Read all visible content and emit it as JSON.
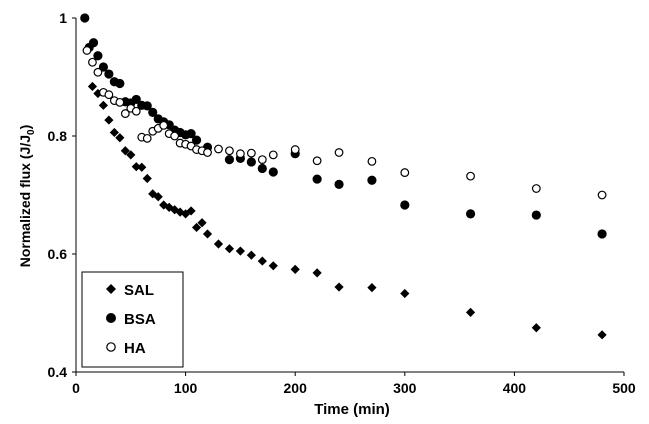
{
  "chart_data": {
    "type": "scatter",
    "xlabel": "Time (min)",
    "ylabel": "Normalized flux (J/J",
    "ylabel_sub": "0",
    "ylabel_close": ")",
    "xlim": [
      0,
      500
    ],
    "ylim": [
      0.4,
      1.0
    ],
    "x_ticks": [
      0,
      100,
      200,
      300,
      400,
      500
    ],
    "y_ticks": [
      0.4,
      0.6,
      0.8,
      1.0
    ],
    "x_tick_labels": [
      "0",
      "100",
      "200",
      "300",
      "400",
      "500"
    ],
    "y_tick_labels": [
      "0.4",
      "0.6",
      "0.8",
      "1"
    ],
    "grid": false,
    "legend_position": "bottom-left",
    "series": [
      {
        "name": "SAL",
        "marker": "diamond",
        "color": "#000000",
        "points": [
          [
            15,
            0.884
          ],
          [
            20,
            0.872
          ],
          [
            25,
            0.852
          ],
          [
            30,
            0.827
          ],
          [
            35,
            0.806
          ],
          [
            40,
            0.797
          ],
          [
            45,
            0.775
          ],
          [
            50,
            0.768
          ],
          [
            55,
            0.748
          ],
          [
            60,
            0.747
          ],
          [
            65,
            0.728
          ],
          [
            70,
            0.702
          ],
          [
            75,
            0.697
          ],
          [
            80,
            0.683
          ],
          [
            85,
            0.679
          ],
          [
            90,
            0.675
          ],
          [
            95,
            0.671
          ],
          [
            100,
            0.668
          ],
          [
            105,
            0.673
          ],
          [
            110,
            0.645
          ],
          [
            115,
            0.653
          ],
          [
            120,
            0.634
          ],
          [
            130,
            0.617
          ],
          [
            140,
            0.609
          ],
          [
            150,
            0.605
          ],
          [
            160,
            0.598
          ],
          [
            170,
            0.588
          ],
          [
            180,
            0.58
          ],
          [
            200,
            0.574
          ],
          [
            220,
            0.568
          ],
          [
            240,
            0.544
          ],
          [
            270,
            0.543
          ],
          [
            300,
            0.533
          ],
          [
            360,
            0.501
          ],
          [
            420,
            0.475
          ],
          [
            480,
            0.463
          ]
        ]
      },
      {
        "name": "BSA",
        "marker": "filled-circle",
        "color": "#000000",
        "points": [
          [
            8,
            1.0
          ],
          [
            12,
            0.95
          ],
          [
            16,
            0.958
          ],
          [
            20,
            0.936
          ],
          [
            25,
            0.917
          ],
          [
            30,
            0.905
          ],
          [
            35,
            0.892
          ],
          [
            40,
            0.889
          ],
          [
            45,
            0.858
          ],
          [
            50,
            0.856
          ],
          [
            55,
            0.862
          ],
          [
            60,
            0.852
          ],
          [
            65,
            0.851
          ],
          [
            70,
            0.84
          ],
          [
            75,
            0.829
          ],
          [
            80,
            0.824
          ],
          [
            85,
            0.819
          ],
          [
            90,
            0.81
          ],
          [
            95,
            0.806
          ],
          [
            100,
            0.802
          ],
          [
            105,
            0.804
          ],
          [
            110,
            0.793
          ],
          [
            120,
            0.781
          ],
          [
            140,
            0.76
          ],
          [
            150,
            0.762
          ],
          [
            160,
            0.756
          ],
          [
            170,
            0.745
          ],
          [
            180,
            0.739
          ],
          [
            200,
            0.77
          ],
          [
            220,
            0.727
          ],
          [
            240,
            0.718
          ],
          [
            270,
            0.725
          ],
          [
            300,
            0.683
          ],
          [
            360,
            0.668
          ],
          [
            420,
            0.666
          ],
          [
            480,
            0.634
          ]
        ]
      },
      {
        "name": "HA",
        "marker": "open-circle",
        "color": "#000000",
        "points": [
          [
            10,
            0.945
          ],
          [
            15,
            0.925
          ],
          [
            20,
            0.908
          ],
          [
            25,
            0.874
          ],
          [
            30,
            0.87
          ],
          [
            35,
            0.86
          ],
          [
            40,
            0.857
          ],
          [
            45,
            0.838
          ],
          [
            50,
            0.847
          ],
          [
            55,
            0.842
          ],
          [
            60,
            0.798
          ],
          [
            65,
            0.796
          ],
          [
            70,
            0.808
          ],
          [
            75,
            0.813
          ],
          [
            80,
            0.818
          ],
          [
            85,
            0.804
          ],
          [
            90,
            0.8
          ],
          [
            95,
            0.788
          ],
          [
            100,
            0.786
          ],
          [
            105,
            0.783
          ],
          [
            110,
            0.777
          ],
          [
            115,
            0.775
          ],
          [
            120,
            0.772
          ],
          [
            130,
            0.778
          ],
          [
            140,
            0.775
          ],
          [
            150,
            0.77
          ],
          [
            160,
            0.771
          ],
          [
            170,
            0.76
          ],
          [
            180,
            0.768
          ],
          [
            200,
            0.777
          ],
          [
            220,
            0.758
          ],
          [
            240,
            0.772
          ],
          [
            270,
            0.757
          ],
          [
            300,
            0.738
          ],
          [
            360,
            0.732
          ],
          [
            420,
            0.711
          ],
          [
            480,
            0.7
          ]
        ]
      }
    ]
  }
}
